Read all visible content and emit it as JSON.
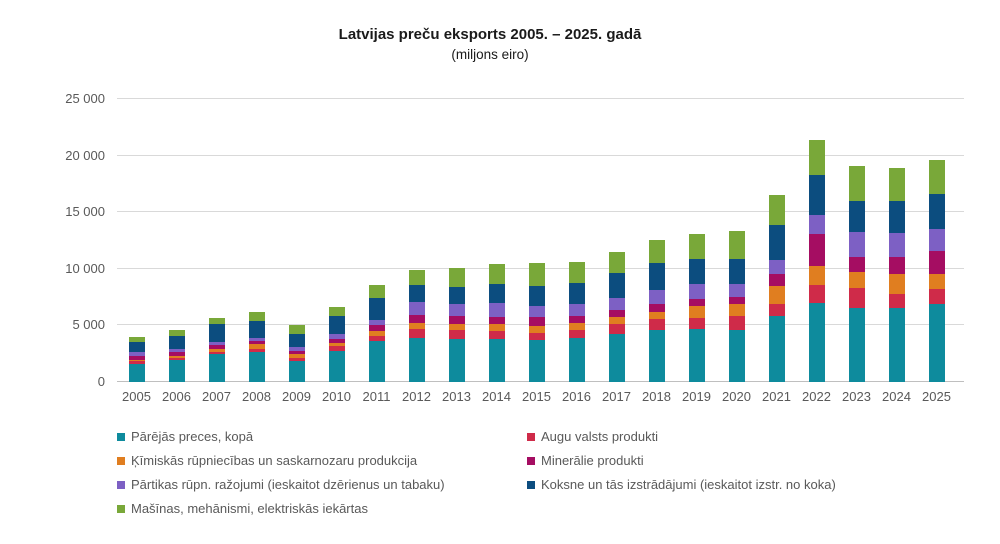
{
  "chart_data": {
    "type": "bar",
    "stacked": true,
    "title": "Latvijas preču eksports 2005. – 2025. gadā",
    "subtitle": "(miljons eiro)",
    "xlabel": "",
    "ylabel": "",
    "ylim": [
      0,
      25000
    ],
    "ytick_interval": 5000,
    "ytick_labels": [
      "0",
      "5 000",
      "10 000",
      "15 000",
      "20 000",
      "25 000"
    ],
    "grid": true,
    "legend_position": "bottom",
    "categories": [
      "2005",
      "2006",
      "2007",
      "2008",
      "2009",
      "2010",
      "2011",
      "2012",
      "2013",
      "2014",
      "2015",
      "2016",
      "2017",
      "2018",
      "2019",
      "2020",
      "2021",
      "2022",
      "2023",
      "2024",
      "2025"
    ],
    "series": [
      {
        "name": "Pārējās preces, kopā",
        "color": "#0E8B9D",
        "values": [
          1550,
          1950,
          2450,
          2690,
          1870,
          2780,
          3610,
          3910,
          3790,
          3760,
          3700,
          3850,
          4230,
          4590,
          4700,
          4550,
          5820,
          6950,
          6560,
          6500,
          6860
        ]
      },
      {
        "name": "Augu valsts produkti",
        "color": "#CF2B49",
        "values": [
          270,
          210,
          210,
          260,
          240,
          360,
          420,
          740,
          770,
          710,
          650,
          740,
          860,
          950,
          920,
          1270,
          1100,
          1600,
          1720,
          1300,
          1330
        ]
      },
      {
        "name": "Ķīmiskās rūpniecības un saskarnozaru produkcija",
        "color": "#E07E20",
        "values": [
          130,
          180,
          260,
          380,
          350,
          330,
          440,
          590,
          590,
          620,
          590,
          650,
          620,
          620,
          1100,
          1100,
          1570,
          1700,
          1450,
          1720,
          1390
        ]
      },
      {
        "name": "Minerālie produkti",
        "color": "#A50D62",
        "values": [
          350,
          290,
          320,
          290,
          290,
          360,
          530,
          710,
          710,
          680,
          770,
          590,
          650,
          740,
          620,
          590,
          1030,
          2800,
          1330,
          1480,
          2010
        ]
      },
      {
        "name": "Pārtikas rūpn. ražojumi (ieskaitot dzērienus un tabaku)",
        "color": "#7D60C4",
        "values": [
          350,
          320,
          320,
          290,
          380,
          410,
          480,
          1100,
          1010,
          1210,
          1010,
          1070,
          1100,
          1250,
          1330,
          1180,
          1240,
          1700,
          2160,
          2130,
          1920
        ]
      },
      {
        "name": "Koksne un tās izstrādājumi (ieskaitot izstr. no koka)",
        "color": "#0C4D7F",
        "values": [
          850,
          1140,
          1520,
          1490,
          1090,
          1570,
          1960,
          1480,
          1480,
          1720,
          1800,
          1840,
          2130,
          2370,
          2190,
          2160,
          3110,
          3550,
          2800,
          2890,
          3100
        ]
      },
      {
        "name": "Mašīnas, mehānismi, elektriskās iekārtas",
        "color": "#79A839",
        "values": [
          480,
          470,
          530,
          780,
          840,
          830,
          1160,
          1330,
          1690,
          1690,
          2020,
          1870,
          1870,
          1990,
          2190,
          2480,
          2630,
          3100,
          3080,
          2920,
          3010
        ]
      }
    ],
    "colors": {
      "grid": "#d9d9d9",
      "axis": "#bfbfbf",
      "tick_text": "#595959",
      "title_text": "#1a1a1a"
    }
  }
}
